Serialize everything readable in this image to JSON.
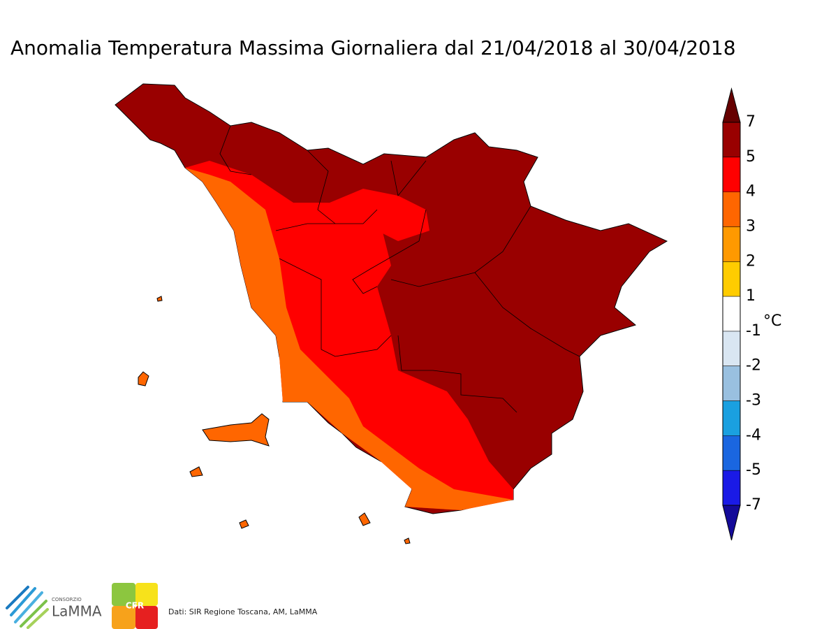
{
  "title": "Anomalia Temperatura Massima Giornaliera dal 21/04/2018 al 30/04/2018",
  "colorbar": {
    "ticks": [
      7,
      5,
      4,
      3,
      2,
      1,
      -1,
      -2,
      -3,
      -4,
      -5,
      -7
    ],
    "colors": [
      "#990000",
      "#ff0000",
      "#ff6600",
      "#ff9900",
      "#ffcc00",
      "#ffffff",
      "#d9e6f2",
      "#99c0e0",
      "#1aa0e0",
      "#1a66e0",
      "#1a1ae6"
    ],
    "extend_colors": [
      "#660000",
      "#140a99"
    ],
    "unit": "°C"
  },
  "footer": {
    "credits": "Dati: SIR Regione Toscana, AM, LaMMA",
    "consorzio": "CONSORZIO",
    "lamma": "LaMMA",
    "cfr": "CFR"
  }
}
